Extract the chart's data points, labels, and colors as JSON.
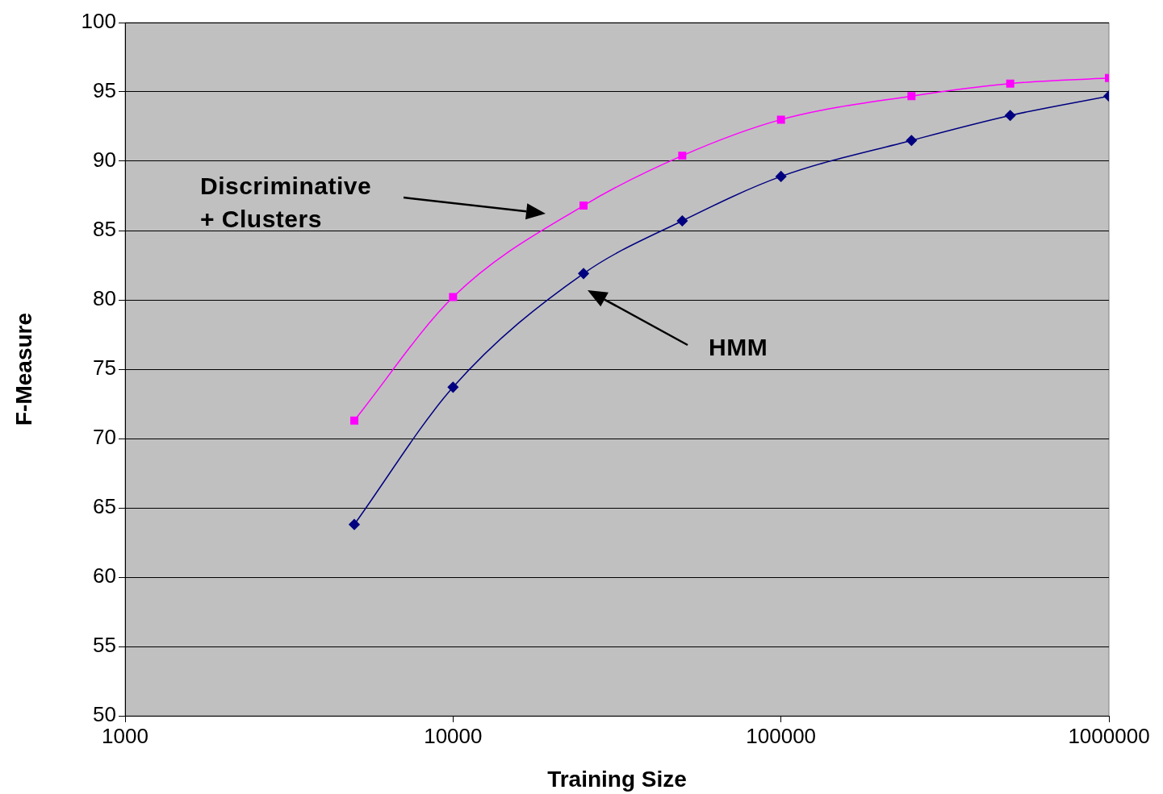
{
  "chart_data": {
    "type": "line",
    "xlabel": "Training Size",
    "ylabel": "F-Measure",
    "x": [
      5000,
      10000,
      25000,
      50000,
      100000,
      250000,
      500000,
      1000000
    ],
    "series": [
      {
        "color": "#ff00ff",
        "marker": "square",
        "values": [
          71.3,
          80.2,
          86.8,
          90.4,
          93.0,
          94.7,
          95.6,
          96.0
        ]
      },
      {
        "color": "#000080",
        "marker": "diamond",
        "values": [
          63.8,
          73.7,
          81.9,
          85.7,
          88.9,
          91.5,
          93.3,
          94.7
        ]
      }
    ],
    "log": "x",
    "xlim": [
      1000,
      1000000
    ],
    "xticks": [
      1000,
      10000,
      100000,
      1000000
    ],
    "ylim": [
      50,
      100
    ],
    "yticks": [
      50,
      55,
      60,
      65,
      70,
      75,
      80,
      85,
      90,
      95,
      100
    ],
    "grid": "y",
    "legend": false,
    "annotations": [
      "Discriminative\n+ Clusters",
      "HMM"
    ]
  }
}
